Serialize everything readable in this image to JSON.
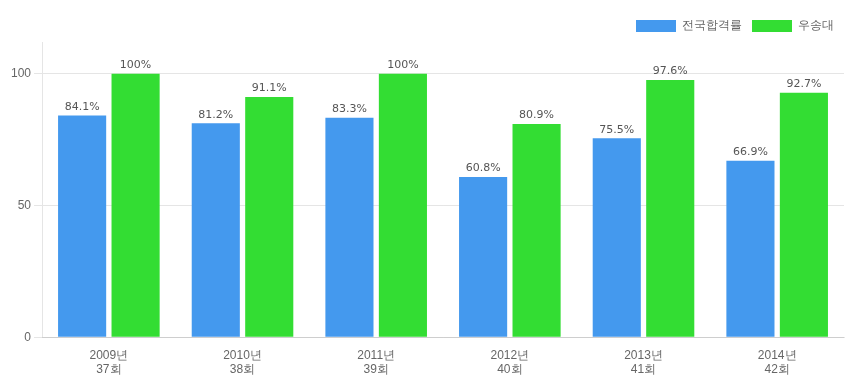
{
  "chart_data": {
    "type": "bar",
    "categories": [
      "2009년\n37회",
      "2010년\n38회",
      "2011년\n39회",
      "2012년\n40회",
      "2013년\n41회",
      "2014년\n42회"
    ],
    "series": [
      {
        "name": "전국합격률",
        "color": "#4499ee",
        "values": [
          84.1,
          81.2,
          83.3,
          60.8,
          75.5,
          66.9
        ],
        "value_labels": [
          "84.1%",
          "81.2%",
          "83.3%",
          "60.8%",
          "75.5%",
          "66.9%"
        ]
      },
      {
        "name": "우송대",
        "color": "#33dd33",
        "values": [
          100.0,
          91.1,
          100.0,
          80.9,
          97.6,
          92.7
        ],
        "value_labels": [
          "100%",
          "91.1%",
          "100%",
          "80.9%",
          "97.6%",
          "92.7%"
        ]
      }
    ],
    "ylim": [
      0,
      112
    ],
    "yticks": [
      0,
      50,
      100
    ],
    "grid": true,
    "legend": "upper right",
    "data_labels": true
  }
}
